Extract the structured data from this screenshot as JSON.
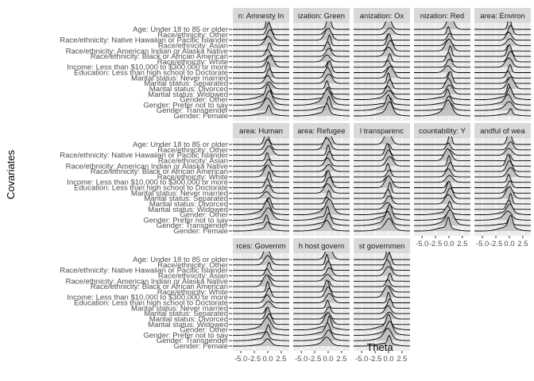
{
  "chart_data": {
    "type": "ridgeline",
    "xlabel": "Theta",
    "ylabel": "Covariates",
    "xticks": [
      "-5.0",
      "-2.5",
      "0.0",
      "2.5"
    ],
    "xlim": [
      -6.5,
      4.0
    ],
    "grid": true,
    "covariates": [
      "Age: Under 18 to 85 or older",
      "Race/ethnicity: Other",
      "Race/ethnicity: Native Hawaiian or Pacific Islander",
      "Race/ethnicity: Asian",
      "Race/ethnicity: American Indian or Alaska Native",
      "Race/ethnicity: Black or African American",
      "Race/ethnicity: White",
      "Income: Less than $10,000 to $300,000 or more",
      "Education: Less than high school to Doctorate",
      "Marital status: Never married",
      "Marital status: Separated",
      "Marital status: Divorced",
      "Marital status: Widowed",
      "Gender: Other",
      "Gender: Prefer not to say",
      "Gender: Transgender",
      "Gender: Female"
    ],
    "panels": [
      {
        "strip": "n: Amnesty In",
        "peak_x": 0.2,
        "xaxis": false
      },
      {
        "strip": "ization: Green",
        "peak_x": 0.0,
        "xaxis": false
      },
      {
        "strip": "anization: Ox",
        "peak_x": 0.1,
        "xaxis": false
      },
      {
        "strip": "nization: Red",
        "peak_x": 0.0,
        "xaxis": false
      },
      {
        "strip": "area: Environ",
        "peak_x": 0.0,
        "xaxis": false
      },
      {
        "strip": "area: Human",
        "peak_x": 0.0,
        "xaxis": false
      },
      {
        "strip": "area: Refugee",
        "peak_x": 0.0,
        "xaxis": false
      },
      {
        "strip": "l transparenc",
        "peak_x": 0.0,
        "xaxis": false
      },
      {
        "strip": "countability: Y",
        "peak_x": 0.0,
        "xaxis": true
      },
      {
        "strip": "andful of wea",
        "peak_x": 0.0,
        "xaxis": true
      },
      {
        "strip": "rces: Governm",
        "peak_x": 0.0,
        "xaxis": true
      },
      {
        "strip": "h host govern",
        "peak_x": 0.0,
        "xaxis": true
      },
      {
        "strip": "st governmen",
        "peak_x": 0.0,
        "xaxis": true
      }
    ]
  }
}
